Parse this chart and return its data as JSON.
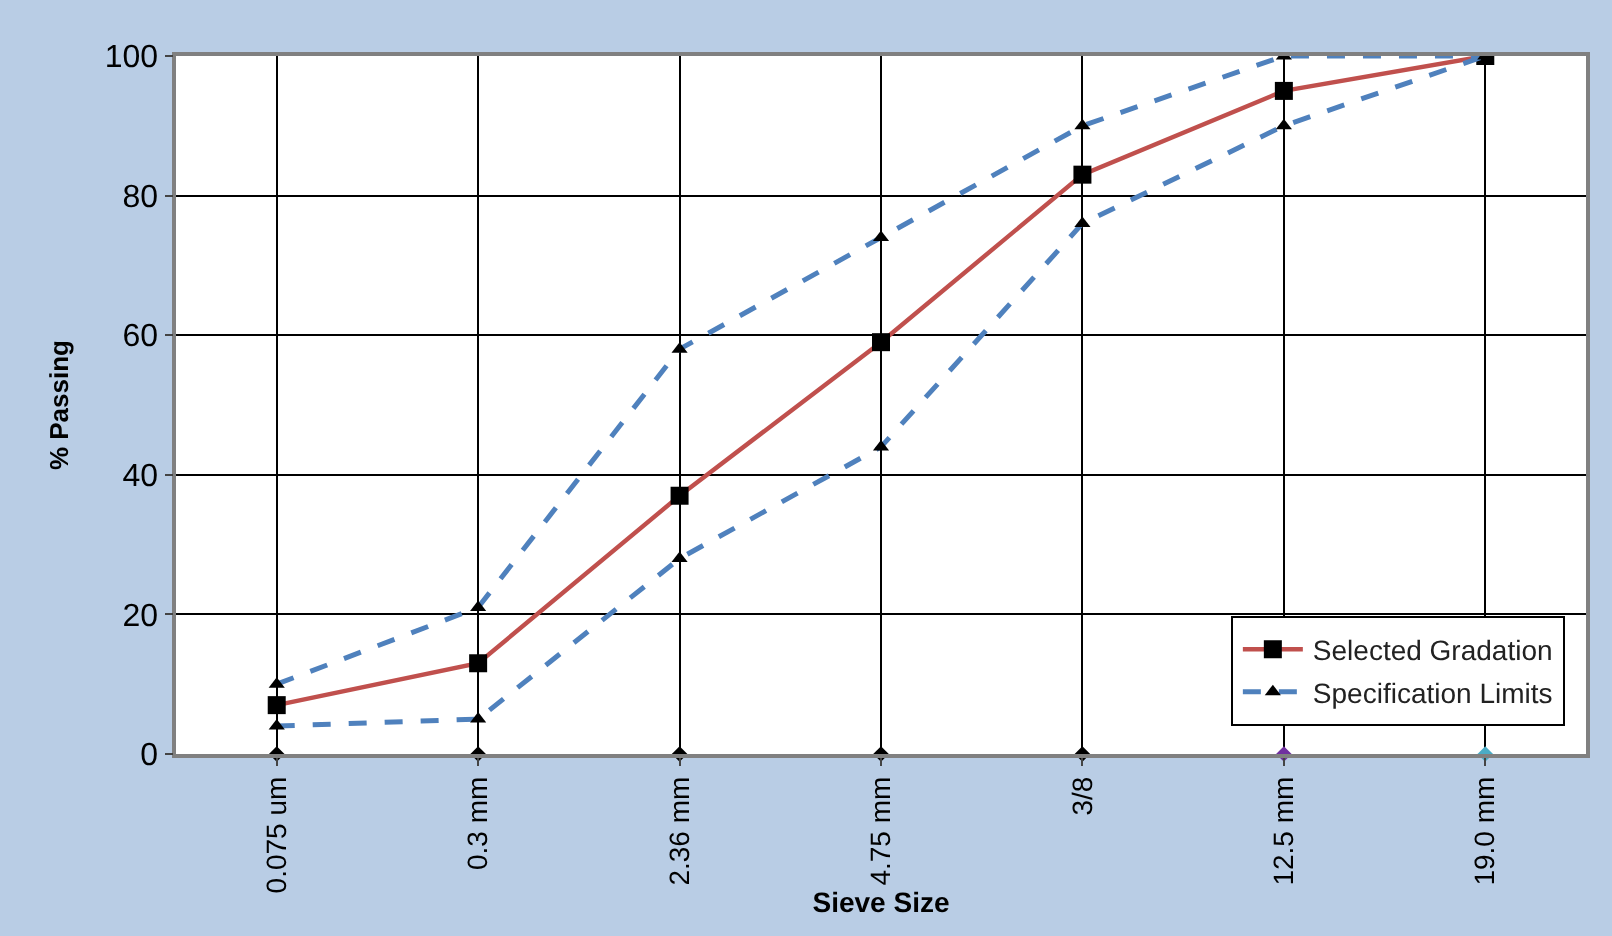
{
  "chart_data": {
    "type": "line",
    "xlabel": "Sieve Size",
    "ylabel": "% Passing",
    "categories": [
      "0.075 um",
      "0.3 mm",
      "2.36 mm",
      "4.75 mm",
      "3/8",
      "12.5 mm",
      "19.0 mm"
    ],
    "ylim": [
      0,
      100
    ],
    "yticks": [
      0,
      20,
      40,
      60,
      80,
      100
    ],
    "grid": true,
    "legend": "bottom right",
    "series": [
      {
        "name": "Selected Gradation",
        "color": "#c0504d",
        "marker": "square",
        "line_style": "solid",
        "values": [
          7,
          13,
          37,
          59,
          83,
          95,
          100
        ]
      },
      {
        "name": "Specification Limits",
        "color": "#4f81bd",
        "marker": "triangle",
        "line_style": "dashed",
        "values": [
          10,
          21,
          58,
          74,
          90,
          100,
          100
        ]
      },
      {
        "color": "#4f81bd",
        "marker": "triangle",
        "line_style": "dashed",
        "values": [
          4,
          5,
          28,
          44,
          76,
          90,
          100
        ]
      },
      {
        "type": "scatter",
        "marker": "diamond",
        "colors": [
          "#000000",
          "#000000",
          "#000000",
          "#000000",
          "#000000",
          "#7030a0",
          "#4bacc6"
        ],
        "values": [
          0,
          0,
          0,
          0,
          0,
          0,
          0
        ]
      }
    ]
  }
}
